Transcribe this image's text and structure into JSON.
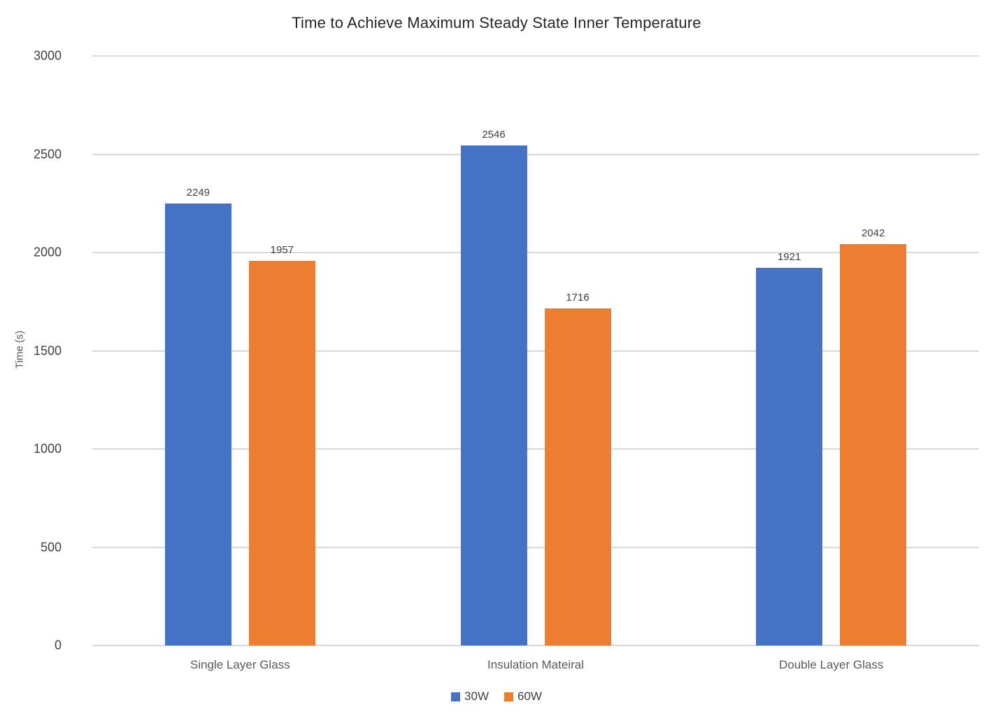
{
  "chart_data": {
    "type": "bar",
    "title": "Time to Achieve Maximum Steady State Inner Temperature",
    "ylabel": "Time (s)",
    "xlabel": "",
    "ylim": [
      0,
      3000
    ],
    "ytick_step": 500,
    "grid": true,
    "legend_position": "bottom",
    "categories": [
      "Single Layer Glass",
      "Insulation Mateiral",
      "Double Layer Glass"
    ],
    "series": [
      {
        "name": "30W",
        "color": "#4472c4",
        "values": [
          2249,
          2546,
          1921
        ]
      },
      {
        "name": "60W",
        "color": "#ed7d31",
        "values": [
          1957,
          1716,
          2042
        ]
      }
    ]
  }
}
